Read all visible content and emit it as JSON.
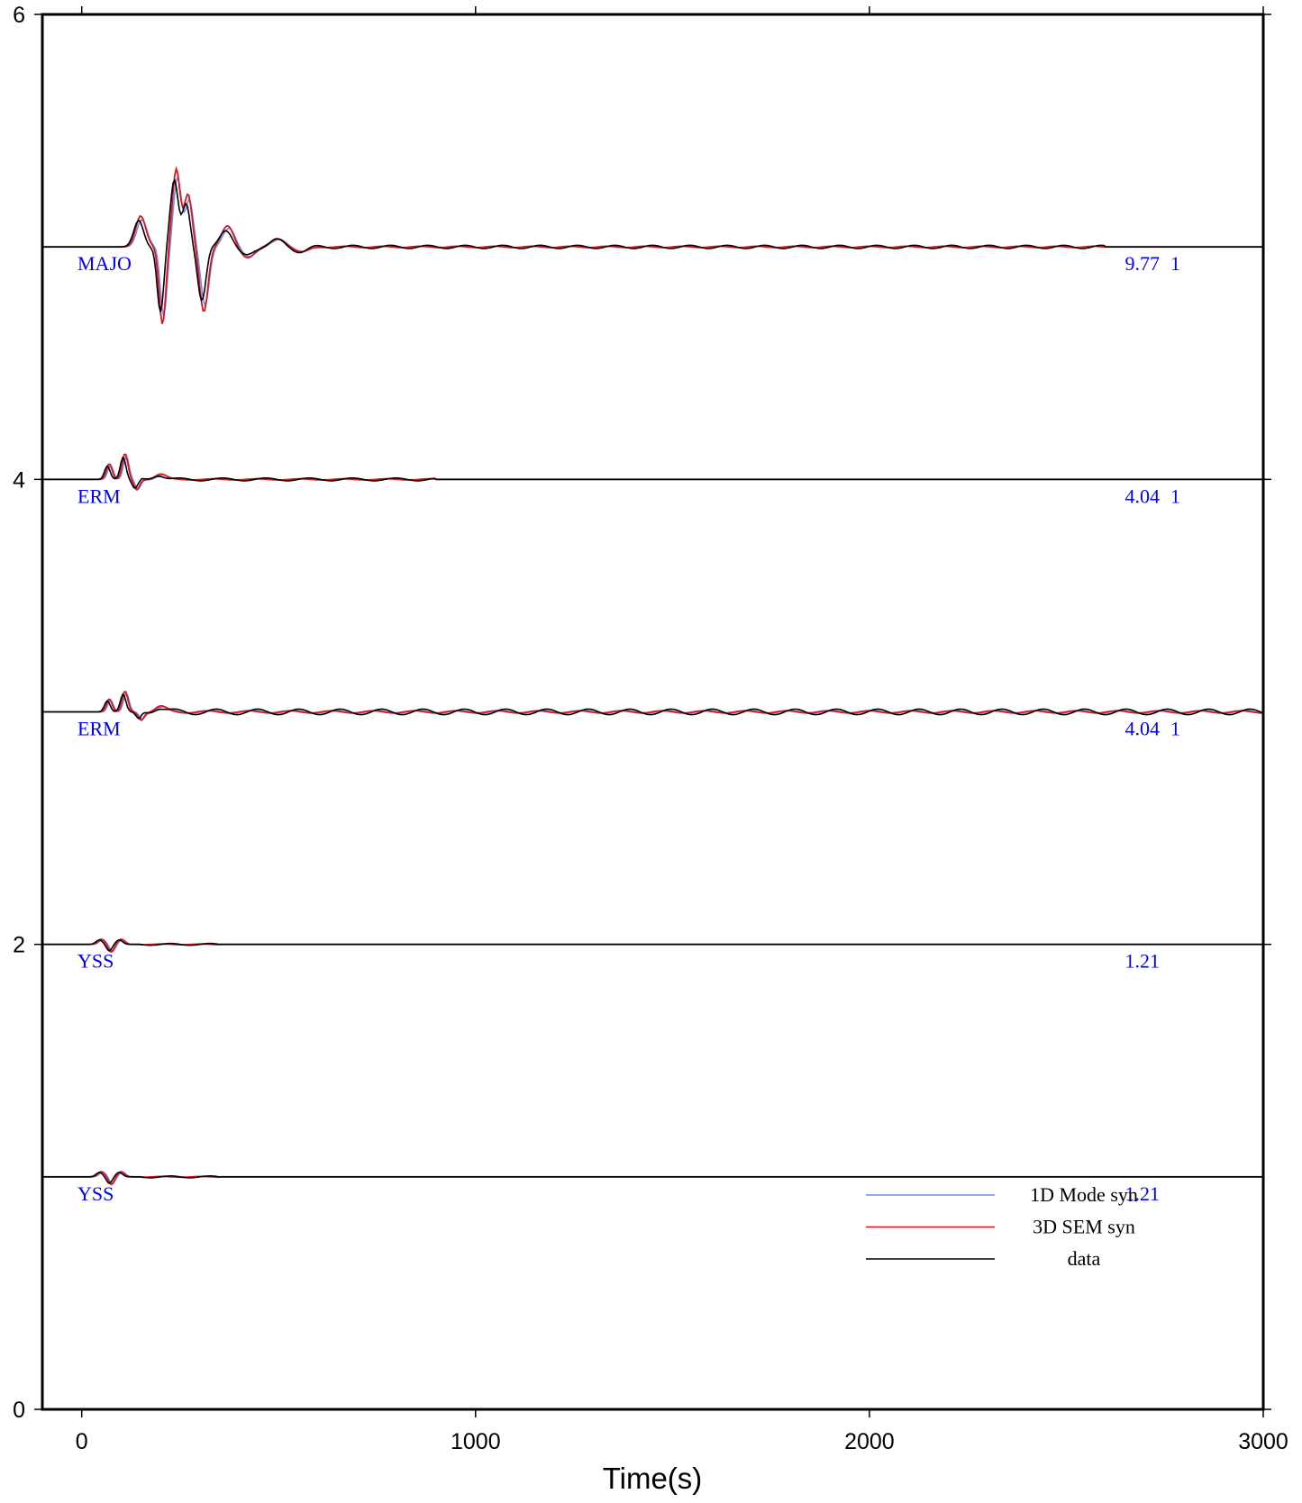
{
  "chart_data": {
    "type": "line",
    "xlabel": "Time(s)",
    "ylabel": "",
    "xlim": [
      -100,
      3000
    ],
    "ylim": [
      0,
      6
    ],
    "x_ticks": [
      0,
      1000,
      2000,
      3000
    ],
    "y_ticks": [
      0,
      2,
      4,
      6
    ],
    "legend_position": "bottom-right",
    "series": [
      {
        "name": "1D Mode syn",
        "color": "#6c8ff0"
      },
      {
        "name": "3D SEM syn",
        "color": "#e0141e"
      },
      {
        "name": "data",
        "color": "#000000"
      }
    ],
    "traces": [
      {
        "station": "MAJO",
        "baseline": 5.0,
        "amplitude": "9.77",
        "amp_suffix": "1"
      },
      {
        "station": "ERM",
        "baseline": 4.0,
        "amplitude": "4.04",
        "amp_suffix": "1"
      },
      {
        "station": "ERM",
        "baseline": 3.0,
        "amplitude": "4.04",
        "amp_suffix": "1"
      },
      {
        "station": "YSS",
        "baseline": 2.0,
        "amplitude": "1.21",
        "amp_suffix": ""
      },
      {
        "station": "YSS",
        "baseline": 1.0,
        "amplitude": "1.21",
        "amp_suffix": ""
      }
    ]
  }
}
